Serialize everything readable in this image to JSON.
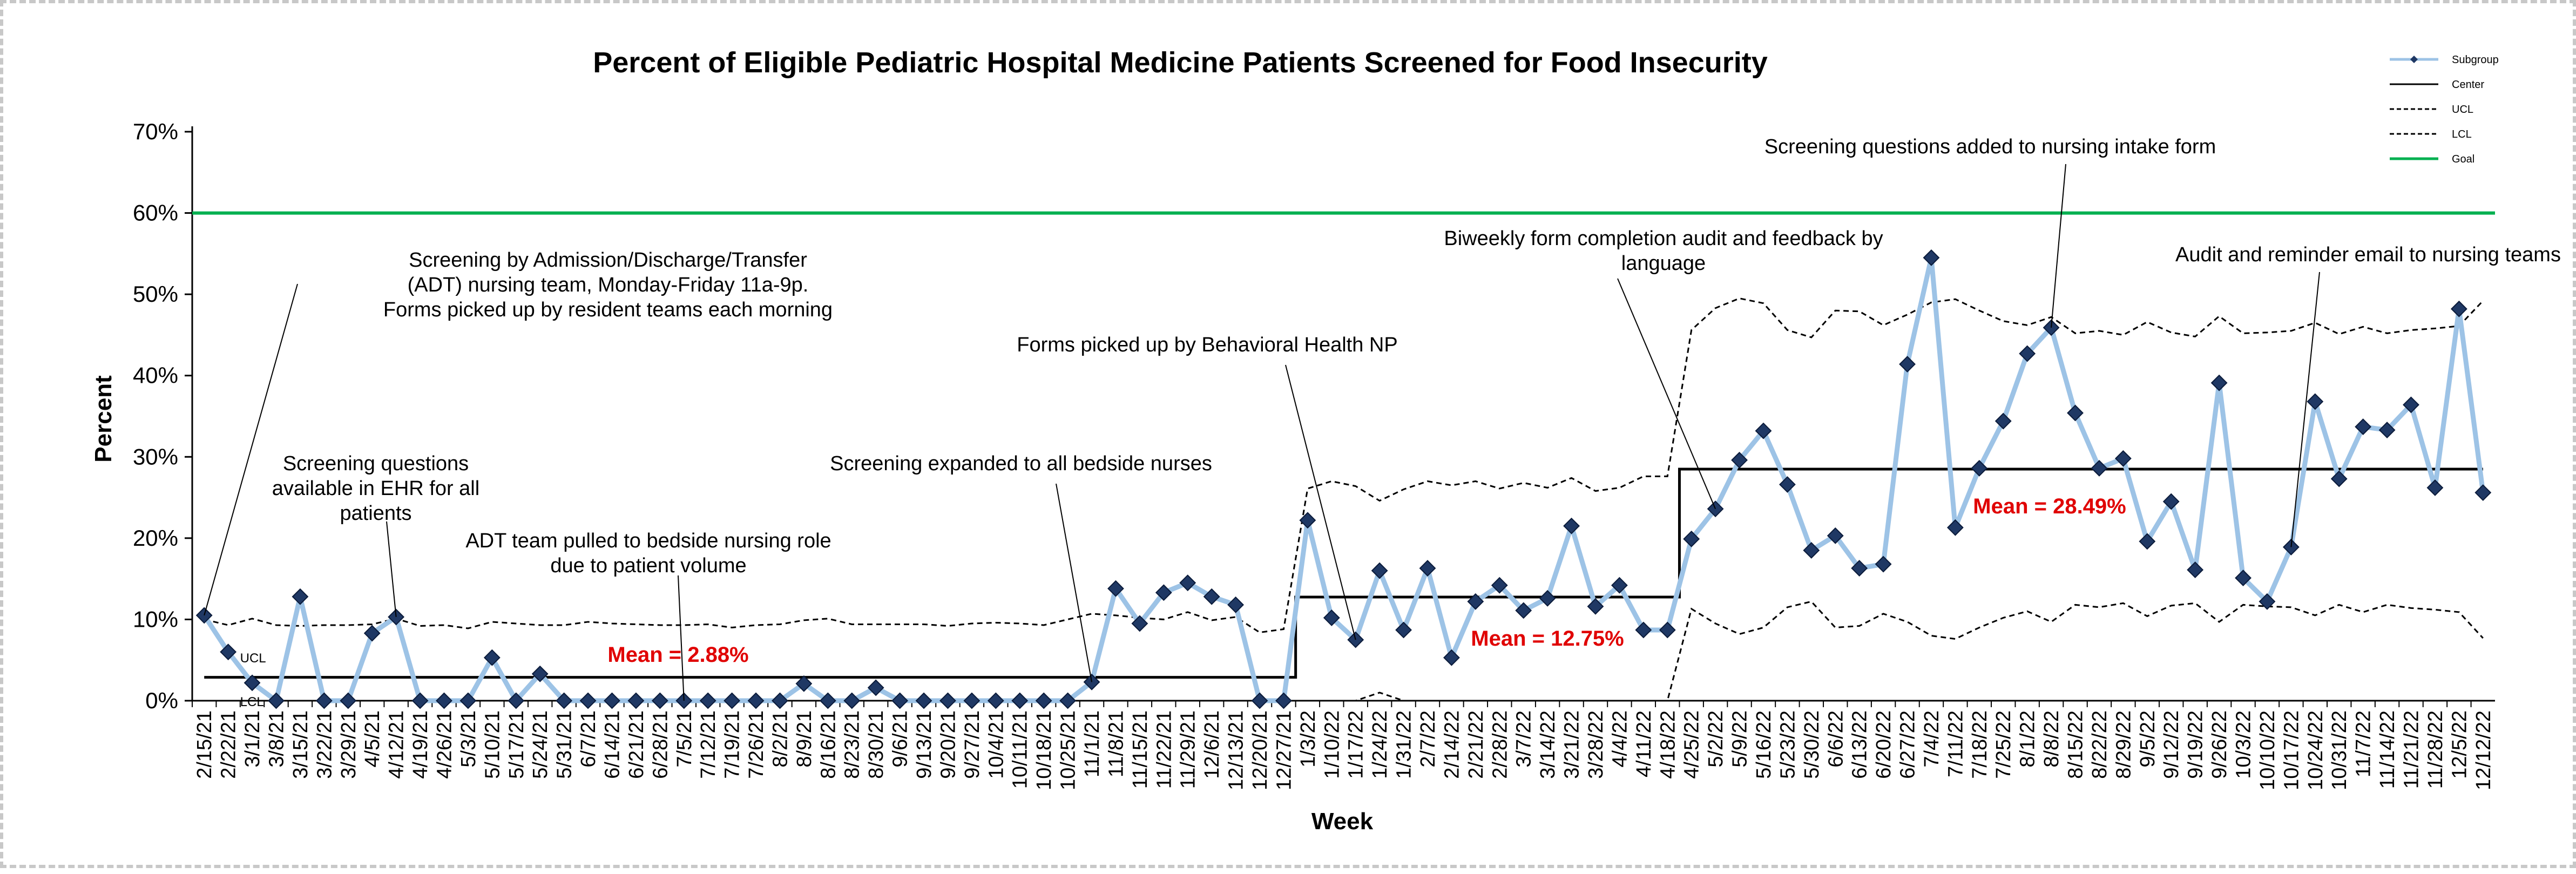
{
  "chart_data": {
    "type": "line",
    "title": "Percent of Eligible Pediatric Hospital Medicine Patients Screened for Food Insecurity",
    "xlabel": "Week",
    "ylabel": "Percent",
    "ylim": [
      0,
      0.7
    ],
    "y_ticks": [
      "0%",
      "10%",
      "20%",
      "30%",
      "40%",
      "50%",
      "60%",
      "70%"
    ],
    "x": [
      "2/15/21",
      "2/22/21",
      "3/1/21",
      "3/8/21",
      "3/15/21",
      "3/22/21",
      "3/29/21",
      "4/5/21",
      "4/12/21",
      "4/19/21",
      "4/26/21",
      "5/3/21",
      "5/10/21",
      "5/17/21",
      "5/24/21",
      "5/31/21",
      "6/7/21",
      "6/14/21",
      "6/21/21",
      "6/28/21",
      "7/5/21",
      "7/12/21",
      "7/19/21",
      "7/26/21",
      "8/2/21",
      "8/9/21",
      "8/16/21",
      "8/23/21",
      "8/30/21",
      "9/6/21",
      "9/13/21",
      "9/20/21",
      "9/27/21",
      "10/4/21",
      "10/11/21",
      "10/18/21",
      "10/25/21",
      "11/1/21",
      "11/8/21",
      "11/15/21",
      "11/22/21",
      "11/29/21",
      "12/6/21",
      "12/13/21",
      "12/20/21",
      "12/27/21",
      "1/3/22",
      "1/10/22",
      "1/17/22",
      "1/24/22",
      "1/31/22",
      "2/7/22",
      "2/14/22",
      "2/21/22",
      "2/28/22",
      "3/7/22",
      "3/14/22",
      "3/21/22",
      "3/28/22",
      "4/4/22",
      "4/11/22",
      "4/18/22",
      "4/25/22",
      "5/2/22",
      "5/9/22",
      "5/16/22",
      "5/23/22",
      "5/30/22",
      "6/6/22",
      "6/13/22",
      "6/20/22",
      "6/27/22",
      "7/4/22",
      "7/11/22",
      "7/18/22",
      "7/25/22",
      "8/1/22",
      "8/8/22",
      "8/15/22",
      "8/22/22",
      "8/29/22",
      "9/5/22",
      "9/12/22",
      "9/19/22",
      "9/26/22",
      "10/3/22",
      "10/10/22",
      "10/17/22",
      "10/24/22",
      "10/31/22",
      "11/7/22",
      "11/14/22",
      "11/21/22",
      "11/28/22",
      "12/5/22",
      "12/12/22"
    ],
    "x_tick_labels": [
      "2/15/21",
      "2/22/21",
      "3/1/21",
      "3/8/21",
      "3/15/21",
      "3/22/21",
      "3/29/21",
      "4/5/21",
      "4/12/21",
      "4/19/21",
      "4/26/21",
      "5/3/21",
      "5/10/21",
      "5/17/21",
      "5/24/21",
      "5/31/21",
      "6/7/21",
      "6/14/21",
      "6/21/21",
      "6/28/21",
      "7/5/21",
      "7/12/21",
      "7/19/21",
      "7/26/21",
      "8/2/21",
      "8/9/21",
      "8/16/21",
      "8/23/21",
      "8/30/21",
      "9/6/21",
      "9/13/21",
      "9/20/21",
      "9/27/21",
      "10/4/21",
      "10/11/21",
      "10/18/21",
      "10/25/21",
      "11/1/21",
      "11/8/21",
      "11/15/21",
      "11/22/21",
      "11/29/21",
      "12/6/21",
      "12/13/21",
      "12/20/21",
      "12/27/21",
      "1/3/22",
      "1/10/22",
      "1/17/22",
      "1/24/22",
      "1/31/22",
      "2/7/22",
      "2/14/22",
      "2/21/22",
      "2/28/22",
      "3/7/22",
      "3/14/22",
      "3/21/22",
      "3/28/22",
      "4/4/22",
      "4/11/22",
      "4/18/22",
      "4/25/22",
      "5/2/22",
      "5/9/22",
      "5/16/22",
      "5/23/22",
      "5/30/22",
      "6/6/22",
      "6/13/22",
      "6/20/22",
      "6/27/22",
      "7/4/22",
      "7/11/22",
      "7/18/22",
      "7/25/22",
      "8/1/22",
      "8/8/22",
      "8/15/22",
      "8/22/22",
      "8/29/22",
      "9/5/22",
      "9/12/22",
      "9/19/22",
      "9/26/22",
      "10/3/22",
      "10/10/22",
      "10/17/22",
      "10/24/22",
      "10/31/22",
      "11/7/22",
      "11/14/22",
      "11/21/22",
      "11/28/22",
      "12/5/22",
      "12/12/22"
    ],
    "series": [
      {
        "name": "Subgroup",
        "color": "#9dc3e6",
        "marker_color": "#1f3864",
        "values": [
          0.105,
          0.06,
          0.022,
          0.0,
          0.128,
          0.0,
          0.0,
          0.083,
          0.103,
          0.0,
          0.0,
          0.0,
          0.053,
          0.0,
          0.033,
          0.0,
          0.0,
          0.0,
          0.0,
          0.0,
          0.0,
          0.0,
          0.0,
          0.0,
          0.0,
          0.021,
          0.0,
          0.0,
          0.016,
          0.0,
          0.0,
          0.0,
          0.0,
          0.0,
          0.0,
          0.0,
          0.0,
          0.023,
          0.138,
          0.095,
          0.133,
          0.145,
          0.128,
          0.118,
          0.0,
          0.0,
          0.222,
          0.102,
          0.075,
          0.16,
          0.087,
          0.163,
          0.053,
          0.122,
          0.142,
          0.111,
          0.126,
          0.215,
          0.116,
          0.142,
          0.087,
          0.087,
          0.199,
          0.236,
          0.296,
          0.332,
          0.266,
          0.185,
          0.203,
          0.163,
          0.168,
          0.414,
          0.545,
          0.213,
          0.286,
          0.344,
          0.427,
          0.459,
          0.354,
          0.286,
          0.298,
          0.196,
          0.245,
          0.161,
          0.391,
          0.151,
          0.122,
          0.189,
          0.368,
          0.273,
          0.337,
          0.333,
          0.364,
          0.262,
          0.482,
          0.256
        ]
      },
      {
        "name": "Center",
        "color": "#000000",
        "values": [
          0.0288,
          0.0288,
          0.0288,
          0.0288,
          0.0288,
          0.0288,
          0.0288,
          0.0288,
          0.0288,
          0.0288,
          0.0288,
          0.0288,
          0.0288,
          0.0288,
          0.0288,
          0.0288,
          0.0288,
          0.0288,
          0.0288,
          0.0288,
          0.0288,
          0.0288,
          0.0288,
          0.0288,
          0.0288,
          0.0288,
          0.0288,
          0.0288,
          0.0288,
          0.0288,
          0.0288,
          0.0288,
          0.0288,
          0.0288,
          0.0288,
          0.0288,
          0.0288,
          0.0288,
          0.0288,
          0.0288,
          0.0288,
          0.0288,
          0.0288,
          0.0288,
          0.0288,
          0.0288,
          0.1275,
          0.1275,
          0.1275,
          0.1275,
          0.1275,
          0.1275,
          0.1275,
          0.1275,
          0.1275,
          0.1275,
          0.1275,
          0.1275,
          0.1275,
          0.1275,
          0.1275,
          0.1275,
          0.2849,
          0.2849,
          0.2849,
          0.2849,
          0.2849,
          0.2849,
          0.2849,
          0.2849,
          0.2849,
          0.2849,
          0.2849,
          0.2849,
          0.2849,
          0.2849,
          0.2849,
          0.2849,
          0.2849,
          0.2849,
          0.2849,
          0.2849,
          0.2849,
          0.2849,
          0.2849,
          0.2849,
          0.2849,
          0.2849,
          0.2849,
          0.2849,
          0.2849,
          0.2849,
          0.2849,
          0.2849,
          0.2849,
          0.2849
        ]
      },
      {
        "name": "UCL",
        "color": "#000000",
        "dash": true,
        "values": [
          0.1,
          0.093,
          0.101,
          0.093,
          0.092,
          0.093,
          0.093,
          0.094,
          0.101,
          0.092,
          0.093,
          0.089,
          0.097,
          0.095,
          0.093,
          0.093,
          0.097,
          0.095,
          0.094,
          0.093,
          0.093,
          0.094,
          0.09,
          0.093,
          0.094,
          0.099,
          0.101,
          0.094,
          0.094,
          0.094,
          0.094,
          0.092,
          0.095,
          0.096,
          0.095,
          0.093,
          0.1,
          0.107,
          0.105,
          0.102,
          0.1,
          0.109,
          0.099,
          0.103,
          0.084,
          0.088,
          0.261,
          0.27,
          0.264,
          0.246,
          0.26,
          0.27,
          0.265,
          0.27,
          0.261,
          0.268,
          0.262,
          0.274,
          0.258,
          0.262,
          0.276,
          0.276,
          0.456,
          0.483,
          0.495,
          0.489,
          0.456,
          0.447,
          0.48,
          0.479,
          0.462,
          0.475,
          0.49,
          0.494,
          0.48,
          0.467,
          0.462,
          0.472,
          0.452,
          0.455,
          0.45,
          0.466,
          0.453,
          0.448,
          0.473,
          0.452,
          0.453,
          0.455,
          0.465,
          0.451,
          0.46,
          0.452,
          0.456,
          0.458,
          0.461,
          0.492
        ]
      },
      {
        "name": "LCL",
        "color": "#000000",
        "dash": true,
        "values": [
          0,
          0,
          0,
          0,
          0,
          0,
          0,
          0,
          0,
          0,
          0,
          0,
          0,
          0,
          0,
          0,
          0,
          0,
          0,
          0,
          0,
          0,
          0,
          0,
          0,
          0,
          0,
          0,
          0,
          0,
          0,
          0,
          0,
          0,
          0,
          0,
          0,
          0,
          0,
          0,
          0,
          0,
          0,
          0,
          0,
          0,
          0,
          0,
          0,
          0.01,
          0,
          0,
          0,
          0,
          0,
          0,
          0,
          0,
          0,
          0,
          0,
          0,
          0.113,
          0.095,
          0.082,
          0.09,
          0.115,
          0.122,
          0.09,
          0.092,
          0.107,
          0.097,
          0.08,
          0.076,
          0.09,
          0.102,
          0.11,
          0.097,
          0.118,
          0.115,
          0.12,
          0.104,
          0.117,
          0.12,
          0.097,
          0.118,
          0.116,
          0.115,
          0.105,
          0.118,
          0.109,
          0.118,
          0.114,
          0.112,
          0.109,
          0.077
        ]
      },
      {
        "name": "Goal",
        "color": "#00b050",
        "values": [
          0.6,
          0.6,
          0.6,
          0.6,
          0.6,
          0.6,
          0.6,
          0.6,
          0.6,
          0.6,
          0.6,
          0.6,
          0.6,
          0.6,
          0.6,
          0.6,
          0.6,
          0.6,
          0.6,
          0.6,
          0.6,
          0.6,
          0.6,
          0.6,
          0.6,
          0.6,
          0.6,
          0.6,
          0.6,
          0.6,
          0.6,
          0.6,
          0.6,
          0.6,
          0.6,
          0.6,
          0.6,
          0.6,
          0.6,
          0.6,
          0.6,
          0.6,
          0.6,
          0.6,
          0.6,
          0.6,
          0.6,
          0.6,
          0.6,
          0.6,
          0.6,
          0.6,
          0.6,
          0.6,
          0.6,
          0.6,
          0.6,
          0.6,
          0.6,
          0.6,
          0.6,
          0.6,
          0.6,
          0.6,
          0.6,
          0.6,
          0.6,
          0.6,
          0.6,
          0.6,
          0.6,
          0.6,
          0.6,
          0.6,
          0.6,
          0.6,
          0.6,
          0.6,
          0.6,
          0.6,
          0.6,
          0.6,
          0.6,
          0.6,
          0.6,
          0.6,
          0.6,
          0.6,
          0.6,
          0.6,
          0.6,
          0.6,
          0.6,
          0.6,
          0.6,
          0.6
        ]
      }
    ],
    "legend": {
      "placement": "top-right",
      "entries": [
        "Subgroup",
        "Center",
        "UCL",
        "LCL",
        "Goal"
      ]
    },
    "line_labels": {
      "ucl": "UCL",
      "lcl": "LCL"
    },
    "mean_labels": [
      "Mean = 2.88%",
      "Mean = 12.75%",
      "Mean = 28.49%"
    ],
    "annotations": [
      {
        "lines": [
          "Screening by Admission/Discharge/Transfer",
          "(ADT) nursing team, Monday-Friday 11a-9p.",
          "Forms picked up by resident teams each morning"
        ],
        "target_index": 0
      },
      {
        "lines": [
          "Screening questions",
          "available in EHR for all",
          "patients"
        ],
        "target_index": 8
      },
      {
        "lines": [
          "ADT team pulled to bedside nursing role",
          "due to patient volume"
        ],
        "target_index": 20
      },
      {
        "lines": [
          "Screening expanded to all bedside nurses"
        ],
        "target_index": 37
      },
      {
        "lines": [
          "Forms picked up by Behavioral Health NP"
        ],
        "target_index": 48
      },
      {
        "lines": [
          "Biweekly form completion audit and feedback by",
          "language"
        ],
        "target_index": 63
      },
      {
        "lines": [
          "Screening questions added to nursing intake form"
        ],
        "target_index": 77
      },
      {
        "lines": [
          "Audit and reminder email to nursing teams"
        ],
        "target_index": 87
      }
    ],
    "grid": false
  }
}
